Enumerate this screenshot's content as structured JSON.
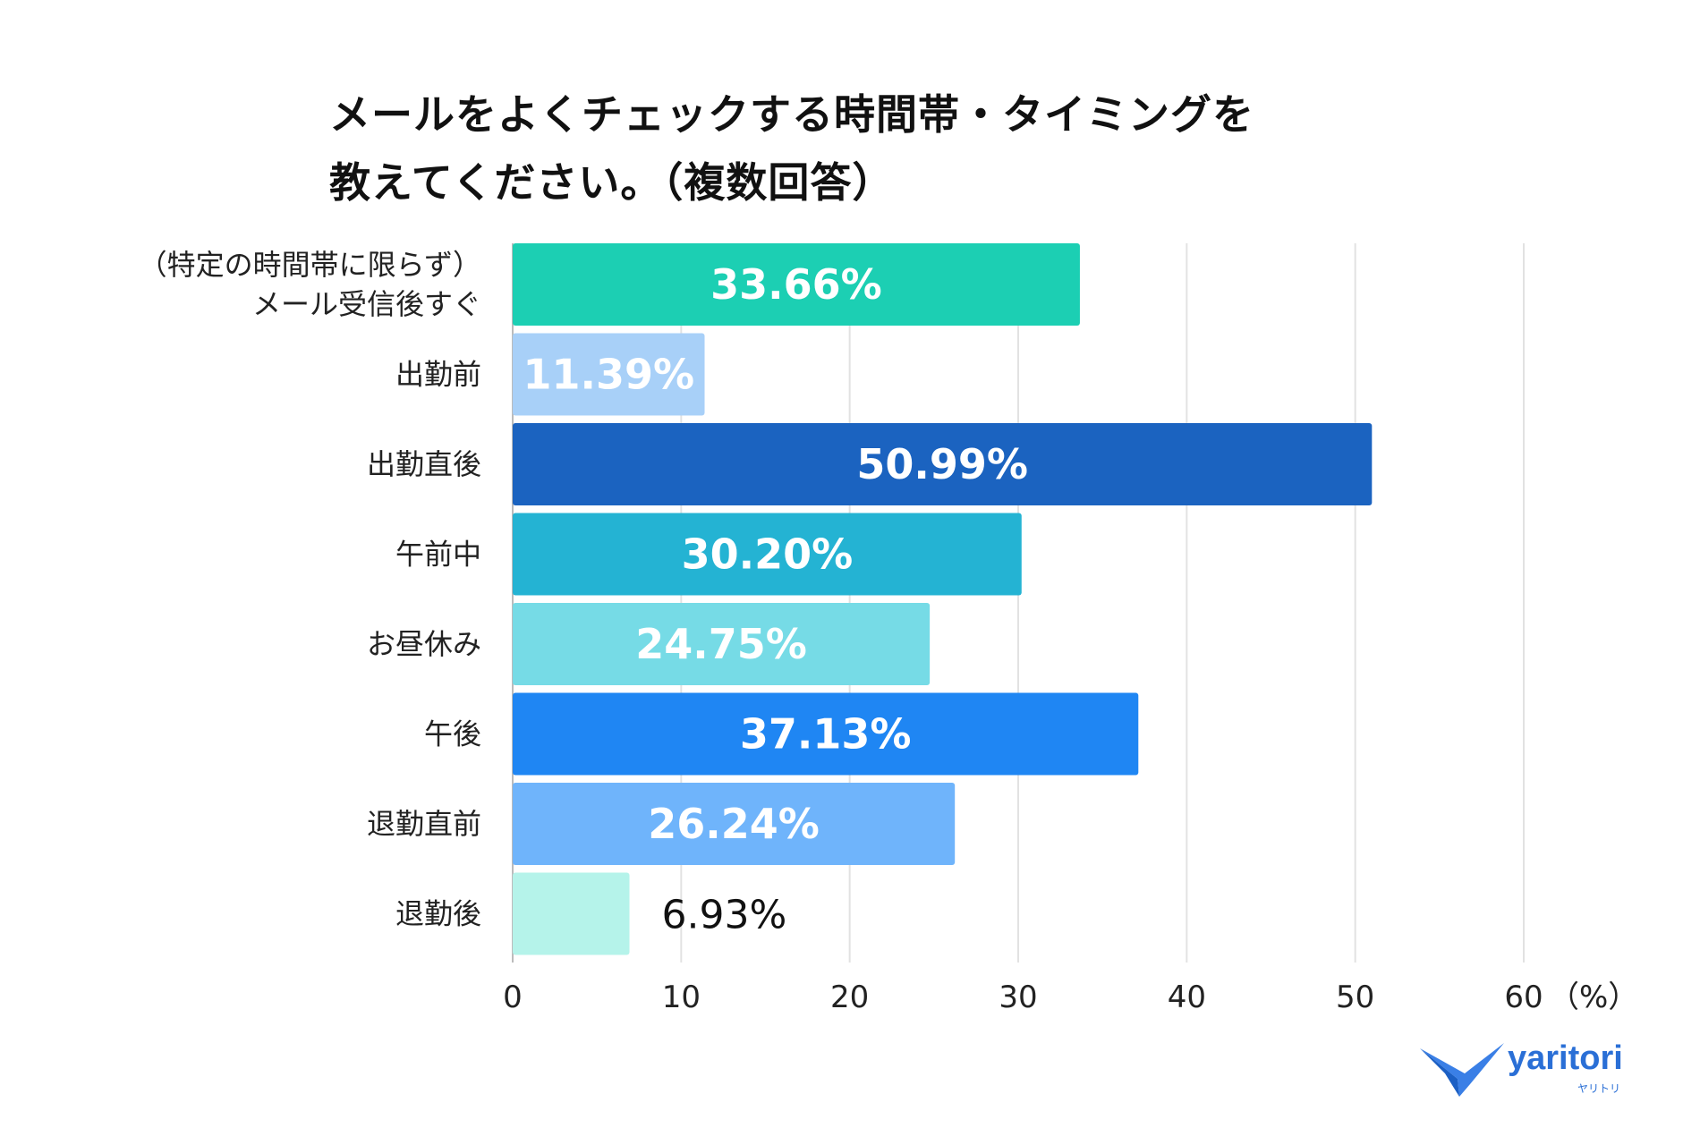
{
  "chart_data": {
    "type": "bar",
    "orientation": "horizontal",
    "title_lines": [
      "メールをよくチェックする時間帯・タイミングを",
      "教えてください。（複数回答）"
    ],
    "categories": [
      [
        "（特定の時間帯に限らず）",
        "メール受信後すぐ"
      ],
      [
        "出勤前"
      ],
      [
        "出勤直後"
      ],
      [
        "午前中"
      ],
      [
        "お昼休み"
      ],
      [
        "午後"
      ],
      [
        "退勤直前"
      ],
      [
        "退勤後"
      ]
    ],
    "values": [
      33.66,
      11.39,
      50.99,
      30.2,
      24.75,
      37.13,
      26.24,
      6.93
    ],
    "value_labels": [
      "33.66%",
      "11.39%",
      "50.99%",
      "30.20%",
      "24.75%",
      "37.13%",
      "26.24%",
      "6.93%"
    ],
    "colors": [
      "#1ccfb3",
      "#a8d0f8",
      "#1b63c0",
      "#24b3d3",
      "#76dbe6",
      "#1f86f3",
      "#6fb4fb",
      "#b5f3ea"
    ],
    "xlim": [
      0,
      60
    ],
    "xticks": [
      0,
      10,
      20,
      30,
      40,
      50,
      60
    ],
    "xunit": "（%）",
    "grid": true
  },
  "brand": {
    "name": "yaritori",
    "kana": "ヤリトリ",
    "color": "#2a6fd6"
  }
}
